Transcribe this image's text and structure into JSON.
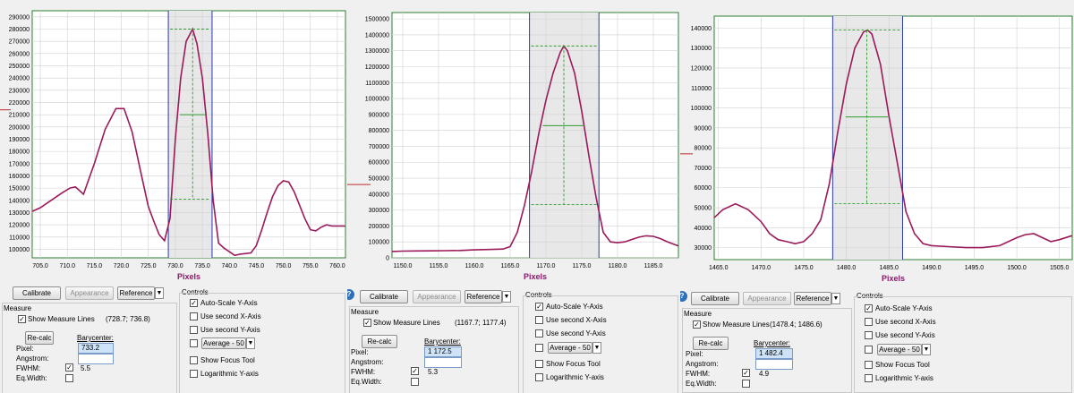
{
  "panels": [
    {
      "chart_data": {
        "type": "line",
        "xlabel": "Pixels",
        "x_ticks": [
          "705.0",
          "710.0",
          "715.0",
          "720.0",
          "725.0",
          "730.0",
          "735.0",
          "740.0",
          "745.0",
          "750.0",
          "755.0",
          "760.0"
        ],
        "y_ticks": [
          "100000",
          "110000",
          "120000",
          "130000",
          "140000",
          "150000",
          "160000",
          "170000",
          "180000",
          "190000",
          "200000",
          "210000",
          "220000",
          "230000",
          "240000",
          "250000",
          "260000",
          "270000",
          "280000",
          "290000"
        ],
        "xlim": [
          703.5,
          761.5
        ],
        "ylim": [
          93000,
          295000
        ],
        "x_tick_values": [
          705,
          710,
          715,
          720,
          725,
          730,
          735,
          740,
          745,
          750,
          755,
          760
        ],
        "y_tick_values": [
          100000,
          110000,
          120000,
          130000,
          140000,
          150000,
          160000,
          170000,
          180000,
          190000,
          200000,
          210000,
          220000,
          230000,
          240000,
          250000,
          260000,
          270000,
          280000,
          290000
        ],
        "series": [
          {
            "color": "#9b1a5a",
            "x": [
              703.5,
              705,
              707,
              709,
              710.5,
              711.5,
              713,
              715,
              717,
              719,
              720.5,
              722,
              723.5,
              725,
              726,
              727,
              728,
              729,
              730,
              731,
              732,
              733.2,
              734,
              735,
              736,
              737,
              738,
              739,
              740,
              741,
              742,
              744,
              745,
              746,
              747,
              748,
              749,
              750,
              751,
              752,
              753,
              754,
              755,
              756,
              757,
              758,
              759,
              760,
              761,
              761.5
            ],
            "y": [
              131000,
              134000,
              140000,
              146000,
              150000,
              151000,
              145000,
              170000,
              198000,
              215000,
              215000,
              196000,
              165000,
              135000,
              123000,
              112000,
              107000,
              125000,
              190000,
              240000,
              270000,
              280000,
              268000,
              240000,
              195000,
              140000,
              105000,
              101000,
              98000,
              95000,
              96000,
              97000,
              103000,
              116000,
              130000,
              143000,
              152000,
              156000,
              155000,
              147000,
              136000,
              125000,
              116000,
              115000,
              118000,
              120000,
              119000,
              119000,
              119000,
              119000
            ]
          }
        ],
        "measure": {
          "x1": 728.7,
          "x2": 736.8,
          "peak_x": 733.2,
          "peak_y": 280000,
          "half_y": 210000,
          "base_y": 141000
        },
        "side_marker_y": 214000
      },
      "calibrate": "Calibrate",
      "appearance": "Appearance",
      "reference": "Reference",
      "measure_title": "Measure",
      "show_measure_lines": "Show Measure Lines",
      "range": "(728.7; 736.8)",
      "recalc": "Re-calc",
      "barycenter": "Barycenter:",
      "pixel": "Pixel:",
      "angstrom": "Angstrom:",
      "fwhm": "FWHM:",
      "eqwidth": "Eq.Width:",
      "pixel_value": "733.2",
      "fwhm_value": "5.5",
      "controls_title": "Controls",
      "auto_scale": "Auto-Scale Y-Axis",
      "second_x": "Use second X-Axis",
      "second_y": "Use second Y-Axis",
      "average": "Average - 50",
      "focus": "Show Focus Tool",
      "log": "Logarithmic Y-axis",
      "help": "?"
    },
    {
      "chart_data": {
        "type": "line",
        "xlabel": "Pixels",
        "x_ticks": [
          "1150.0",
          "1155.0",
          "1160.0",
          "1165.0",
          "1170.0",
          "1175.0",
          "1180.0",
          "1185.0"
        ],
        "y_ticks": [
          "0",
          "100000",
          "200000",
          "300000",
          "400000",
          "500000",
          "600000",
          "700000",
          "800000",
          "900000",
          "1000000",
          "1100000",
          "1200000",
          "1300000",
          "1400000",
          "1500000"
        ],
        "xlim": [
          1148.5,
          1188.5
        ],
        "ylim": [
          0,
          1540000
        ],
        "x_tick_values": [
          1150,
          1155,
          1160,
          1165,
          1170,
          1175,
          1180,
          1185
        ],
        "y_tick_values": [
          0,
          100000,
          200000,
          300000,
          400000,
          500000,
          600000,
          700000,
          800000,
          900000,
          1000000,
          1100000,
          1200000,
          1300000,
          1400000,
          1500000
        ],
        "series": [
          {
            "color": "#9b1a5a",
            "x": [
              1148.5,
              1150,
              1152,
              1154,
              1156,
              1158,
              1160,
              1162,
              1164,
              1165,
              1166,
              1167,
              1168,
              1169,
              1170,
              1171,
              1172,
              1172.5,
              1173,
              1174,
              1175,
              1176,
              1177,
              1178,
              1179,
              1180,
              1181,
              1182,
              1183,
              1184,
              1185,
              1186,
              1187,
              1188.5
            ],
            "y": [
              40000,
              42000,
              43000,
              44000,
              45000,
              46000,
              50000,
              52000,
              55000,
              70000,
              160000,
              330000,
              540000,
              780000,
              990000,
              1160000,
              1290000,
              1330000,
              1300000,
              1160000,
              920000,
              640000,
              380000,
              160000,
              100000,
              95000,
              100000,
              115000,
              130000,
              138000,
              135000,
              120000,
              100000,
              75000
            ]
          }
        ],
        "measure": {
          "x1": 1167.7,
          "x2": 1177.4,
          "peak_x": 1172.5,
          "peak_y": 1330000,
          "half_y": 830000,
          "base_y": 335000
        },
        "side_marker_y": 460000
      },
      "calibrate": "Calibrate",
      "appearance": "Appearance",
      "reference": "Reference",
      "measure_title": "Measure",
      "show_measure_lines": "Show Measure Lines",
      "range": "(1167.7; 1177.4)",
      "recalc": "Re-calc",
      "barycenter": "Barycenter:",
      "pixel": "Pixel:",
      "angstrom": "Angstrom:",
      "fwhm": "FWHM:",
      "eqwidth": "Eq.Width:",
      "pixel_value": "1 172.5",
      "fwhm_value": "5.3",
      "controls_title": "Controls",
      "auto_scale": "Auto-Scale Y-Axis",
      "second_x": "Use second X-Axis",
      "second_y": "Use second Y-Axis",
      "average": "Average - 50",
      "focus": "Show Focus Tool",
      "log": "Logarithmic Y-axis",
      "help": "?"
    },
    {
      "chart_data": {
        "type": "line",
        "xlabel": "Pixels",
        "x_ticks": [
          "1465.0",
          "1470.0",
          "1475.0",
          "1480.0",
          "1485.0",
          "1490.0",
          "1495.0",
          "1500.0",
          "1505.0"
        ],
        "y_ticks": [
          "30000",
          "40000",
          "50000",
          "60000",
          "70000",
          "80000",
          "90000",
          "100000",
          "110000",
          "120000",
          "130000",
          "140000"
        ],
        "xlim": [
          1464.5,
          1506.5
        ],
        "ylim": [
          24000,
          146000
        ],
        "x_tick_values": [
          1465,
          1470,
          1475,
          1480,
          1485,
          1490,
          1495,
          1500,
          1505
        ],
        "y_tick_values": [
          30000,
          40000,
          50000,
          60000,
          70000,
          80000,
          90000,
          100000,
          110000,
          120000,
          130000,
          140000
        ],
        "series": [
          {
            "color": "#9b1a5a",
            "x": [
              1464.5,
              1465.5,
              1467,
              1468.5,
              1470,
              1471,
              1472,
              1473,
              1474,
              1475,
              1476,
              1477,
              1478,
              1479,
              1480,
              1481,
              1482,
              1482.5,
              1483,
              1484,
              1485,
              1486,
              1487,
              1488,
              1489,
              1490,
              1492,
              1494,
              1496,
              1498,
              1500,
              1501,
              1502,
              1503,
              1504,
              1505,
              1506.5
            ],
            "y": [
              45000,
              49000,
              52000,
              49000,
              43000,
              37000,
              34000,
              33000,
              32000,
              33000,
              37000,
              44000,
              62000,
              88000,
              112000,
              130000,
              138000,
              139000,
              137000,
              122000,
              96000,
              72000,
              48000,
              37000,
              32000,
              31000,
              30500,
              30000,
              30000,
              31000,
              35000,
              36500,
              37000,
              35000,
              33000,
              34000,
              36000
            ]
          }
        ],
        "measure": {
          "x1": 1478.4,
          "x2": 1486.6,
          "peak_x": 1482.4,
          "peak_y": 139000,
          "half_y": 95500,
          "base_y": 52000
        },
        "side_marker_y": 77000
      },
      "calibrate": "Calibrate",
      "appearance": "Appearance",
      "reference": "Reference",
      "measure_title": "Measure",
      "show_measure_lines": "Show Measure Lines",
      "range": "(1478.4; 1486.6)",
      "recalc": "Re-calc",
      "barycenter": "Barycenter:",
      "pixel": "Pixel:",
      "angstrom": "Angstrom:",
      "fwhm": "FWHM:",
      "eqwidth": "Eq.Width:",
      "pixel_value": "1 482.4",
      "fwhm_value": "4.9",
      "controls_title": "Controls",
      "auto_scale": "Auto-Scale Y-Axis",
      "second_x": "Use second X-Axis",
      "second_y": "Use second Y-Axis",
      "average": "Average - 50",
      "focus": "Show Focus Tool",
      "log": "Logarithmic Y-axis",
      "help": "?"
    }
  ]
}
